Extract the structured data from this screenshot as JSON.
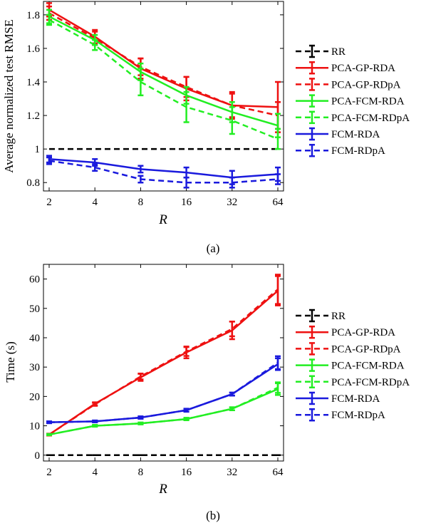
{
  "colors": {
    "black": "#000000",
    "red": "#ee1111",
    "green": "#22ee22",
    "blue": "#1a1add"
  },
  "chart_data": [
    {
      "type": "line",
      "caption": "(a)",
      "xlabel": "R",
      "ylabel": "Average normalized test RMSE",
      "x_ticks": [
        "2",
        "4",
        "8",
        "16",
        "32",
        "64"
      ],
      "x": [
        2,
        4,
        8,
        16,
        32,
        64
      ],
      "x_scale": "log2",
      "ylim": [
        0.75,
        1.88
      ],
      "y_ticks": [
        0.8,
        1,
        1.2,
        1.4,
        1.6,
        1.8
      ],
      "y_tick_labels": [
        "0.8",
        "1",
        "1.2",
        "1.4",
        "1.6",
        "1.8"
      ],
      "legend_position": "right",
      "series": [
        {
          "name": "RR",
          "color": "black",
          "style": "dashed",
          "errorbars": false,
          "values": [
            1.0,
            1.0,
            1.0,
            1.0,
            1.0,
            1.0
          ],
          "err": [
            0,
            0,
            0,
            0,
            0,
            0
          ]
        },
        {
          "name": "PCA-GP-RDA",
          "color": "red",
          "style": "solid",
          "errorbars": true,
          "values": [
            1.83,
            1.67,
            1.48,
            1.36,
            1.26,
            1.25
          ],
          "err": [
            0.04,
            0.04,
            0.06,
            0.07,
            0.08,
            0.15
          ]
        },
        {
          "name": "PCA-GP-RDpA",
          "color": "red",
          "style": "dashed",
          "errorbars": true,
          "values": [
            1.81,
            1.66,
            1.49,
            1.37,
            1.26,
            1.2
          ],
          "err": [
            0.04,
            0.04,
            0.05,
            0.06,
            0.07,
            0.08
          ]
        },
        {
          "name": "PCA-FCM-RDA",
          "color": "green",
          "style": "solid",
          "errorbars": true,
          "values": [
            1.79,
            1.65,
            1.46,
            1.32,
            1.22,
            1.14
          ],
          "err": [
            0.04,
            0.03,
            0.05,
            0.05,
            0.06,
            0.07
          ]
        },
        {
          "name": "PCA-FCM-RDpA",
          "color": "green",
          "style": "dashed",
          "errorbars": true,
          "values": [
            1.77,
            1.62,
            1.4,
            1.25,
            1.17,
            1.06
          ],
          "err": [
            0.03,
            0.03,
            0.08,
            0.09,
            0.08,
            0.06
          ]
        },
        {
          "name": "FCM-RDA",
          "color": "blue",
          "style": "solid",
          "errorbars": true,
          "values": [
            0.94,
            0.92,
            0.88,
            0.86,
            0.83,
            0.85
          ],
          "err": [
            0.02,
            0.02,
            0.02,
            0.03,
            0.04,
            0.04
          ]
        },
        {
          "name": "FCM-RDpA",
          "color": "blue",
          "style": "dashed",
          "errorbars": true,
          "values": [
            0.93,
            0.89,
            0.82,
            0.8,
            0.8,
            0.82
          ],
          "err": [
            0.02,
            0.02,
            0.02,
            0.03,
            0.03,
            0.03
          ]
        }
      ]
    },
    {
      "type": "line",
      "caption": "(b)",
      "xlabel": "R",
      "ylabel": "Time (s)",
      "x_ticks": [
        "2",
        "4",
        "8",
        "16",
        "32",
        "64"
      ],
      "x": [
        2,
        4,
        8,
        16,
        32,
        64
      ],
      "x_scale": "log2",
      "ylim": [
        -2,
        65
      ],
      "y_ticks": [
        0,
        10,
        20,
        30,
        40,
        50,
        60
      ],
      "y_tick_labels": [
        "0",
        "10",
        "20",
        "30",
        "40",
        "50",
        "60"
      ],
      "legend_position": "right",
      "series": [
        {
          "name": "RR",
          "color": "black",
          "style": "dashed",
          "errorbars": true,
          "values": [
            0,
            0,
            0,
            0,
            0,
            0
          ],
          "err": [
            0,
            0,
            0,
            0,
            0,
            0
          ]
        },
        {
          "name": "PCA-GP-RDA",
          "color": "red",
          "style": "solid",
          "errorbars": true,
          "values": [
            7,
            17.5,
            26.5,
            35,
            42.5,
            56
          ],
          "err": [
            0.3,
            0.5,
            1.2,
            2.0,
            3.0,
            5.0
          ]
        },
        {
          "name": "PCA-GP-RDpA",
          "color": "red",
          "style": "dashed",
          "errorbars": true,
          "values": [
            7,
            17.3,
            26.8,
            35.3,
            43,
            56.5
          ],
          "err": [
            0.3,
            0.5,
            1.0,
            1.5,
            2.5,
            5.0
          ]
        },
        {
          "name": "PCA-FCM-RDA",
          "color": "green",
          "style": "solid",
          "errorbars": true,
          "values": [
            7,
            10,
            10.8,
            12.3,
            15.8,
            22.5
          ],
          "err": [
            0.2,
            0.3,
            0.3,
            0.4,
            0.5,
            2.0
          ]
        },
        {
          "name": "PCA-FCM-RDpA",
          "color": "green",
          "style": "dashed",
          "errorbars": true,
          "values": [
            7,
            10,
            10.8,
            12.3,
            15.8,
            23
          ],
          "err": [
            0.2,
            0.3,
            0.3,
            0.4,
            0.5,
            1.8
          ]
        },
        {
          "name": "FCM-RDA",
          "color": "blue",
          "style": "solid",
          "errorbars": true,
          "values": [
            11.2,
            11.5,
            12.8,
            15.3,
            20.8,
            31
          ],
          "err": [
            0.3,
            0.3,
            0.4,
            0.5,
            0.5,
            2.0
          ]
        },
        {
          "name": "FCM-RDpA",
          "color": "blue",
          "style": "dashed",
          "errorbars": true,
          "values": [
            11.2,
            11.5,
            12.8,
            15.3,
            20.8,
            31.5
          ],
          "err": [
            0.3,
            0.3,
            0.4,
            0.5,
            0.5,
            2.2
          ]
        }
      ]
    }
  ]
}
